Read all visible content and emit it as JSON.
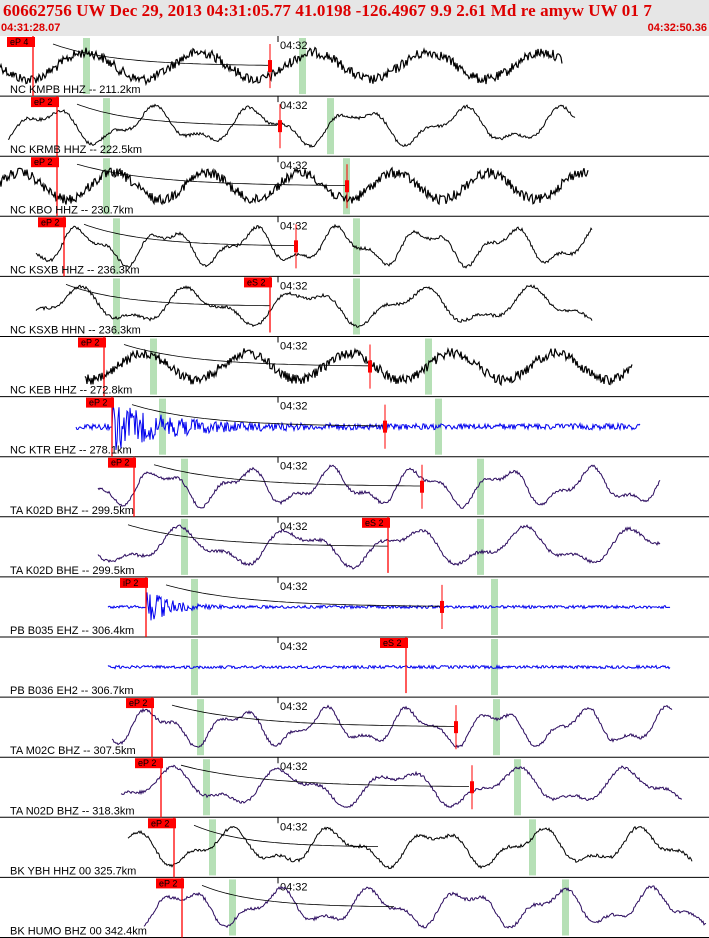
{
  "header": {
    "title": "60662756 UW Dec 29, 2013 04:31:05.77   41.0198 -126.4967  9.9 2.61 Md re amyw UW 01    7",
    "start_time": "04:31:28.07",
    "end_time": "04:32:50.36"
  },
  "colors": {
    "header_bg": "#e6e6e6",
    "header_text": "#dd0000",
    "trace_black": "#000000",
    "trace_blue": "#0000ee",
    "trace_purple": "#2a0a5e",
    "pick_red": "#ff0000",
    "window_green": "#b6e0b6"
  },
  "minute_marker": "04:32",
  "traces": [
    {
      "label": "NC KMPB HHZ -- 211.2km",
      "color": "black",
      "style": "noisy",
      "pick": "eP 4",
      "s_pick": ""
    },
    {
      "label": "NC KRMB HHZ -- 222.5km",
      "color": "black",
      "style": "smooth",
      "pick": "eP 2",
      "s_pick": ""
    },
    {
      "label": "NC KBO HHZ -- 230.7km",
      "color": "black",
      "style": "noisy",
      "pick": "eP 2",
      "s_pick": ""
    },
    {
      "label": "NC KSXB HHZ -- 236.3km",
      "color": "black",
      "style": "smooth",
      "pick": "eP 2",
      "s_pick": ""
    },
    {
      "label": "NC KSXB HHN -- 236.3km",
      "color": "black",
      "style": "smooth",
      "pick": "",
      "s_pick": "eS 2"
    },
    {
      "label": "NC KEB HHZ -- 272.8km",
      "color": "black",
      "style": "noisy",
      "pick": "eP 2",
      "s_pick": ""
    },
    {
      "label": "NC KTR EHZ -- 278.1km",
      "color": "blue",
      "style": "burst",
      "pick": "eP 2",
      "s_pick": ""
    },
    {
      "label": "TA K02D BHZ -- 299.5km",
      "color": "purple",
      "style": "smooth",
      "pick": "eP 2",
      "s_pick": ""
    },
    {
      "label": "TA K02D BHE -- 299.5km",
      "color": "purple",
      "style": "smooth",
      "pick": "",
      "s_pick": "eS 2"
    },
    {
      "label": "PB B035 EHZ -- 306.4km",
      "color": "blue",
      "style": "spike",
      "pick": "iP 2",
      "s_pick": ""
    },
    {
      "label": "PB B036 EH2 -- 306.7km",
      "color": "blue",
      "style": "spike",
      "pick": "",
      "s_pick": "eS 2"
    },
    {
      "label": "TA M02C BHZ -- 307.5km",
      "color": "purple",
      "style": "smooth",
      "pick": "eP 2",
      "s_pick": ""
    },
    {
      "label": "TA N02D BHZ -- 318.3km",
      "color": "purple",
      "style": "smooth",
      "pick": "eP 2",
      "s_pick": ""
    },
    {
      "label": "BK YBH HHZ 00 325.7km",
      "color": "black",
      "style": "smooth",
      "pick": "eP 2",
      "s_pick": ""
    },
    {
      "label": "BK HUMO BHZ 00 342.4km",
      "color": "purple",
      "style": "smooth",
      "pick": "eP 2",
      "s_pick": ""
    }
  ]
}
